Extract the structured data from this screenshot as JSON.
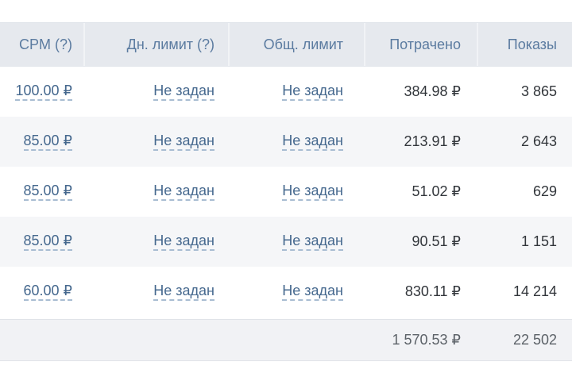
{
  "table": {
    "header": {
      "cpm": "CPM (?)",
      "daily_limit": "Дн. лимит (?)",
      "total_limit": "Общ. лимит",
      "spent": "Потрачено",
      "impressions": "Показы"
    },
    "rows": [
      {
        "cpm": "100.00 ₽",
        "daily_limit": "Не задан",
        "total_limit": "Не задан",
        "spent": "384.98 ₽",
        "impressions": "3 865"
      },
      {
        "cpm": "85.00 ₽",
        "daily_limit": "Не задан",
        "total_limit": "Не задан",
        "spent": "213.91 ₽",
        "impressions": "2 643"
      },
      {
        "cpm": "85.00 ₽",
        "daily_limit": "Не задан",
        "total_limit": "Не задан",
        "spent": "51.02 ₽",
        "impressions": "629"
      },
      {
        "cpm": "85.00 ₽",
        "daily_limit": "Не задан",
        "total_limit": "Не задан",
        "spent": "90.51 ₽",
        "impressions": "1 151"
      },
      {
        "cpm": "60.00 ₽",
        "daily_limit": "Не задан",
        "total_limit": "Не задан",
        "spent": "830.11 ₽",
        "impressions": "14 214"
      }
    ],
    "totals": {
      "spent": "1 570.53 ₽",
      "impressions": "22 502"
    }
  },
  "colors": {
    "header_bg": "#e6e9ee",
    "row_alt_bg": "#f5f6f8",
    "totals_bg": "#f1f2f5",
    "header_text": "#5b7ba0",
    "link_text": "#45688e",
    "value_text": "#32363b",
    "totals_text": "#5c6268"
  }
}
